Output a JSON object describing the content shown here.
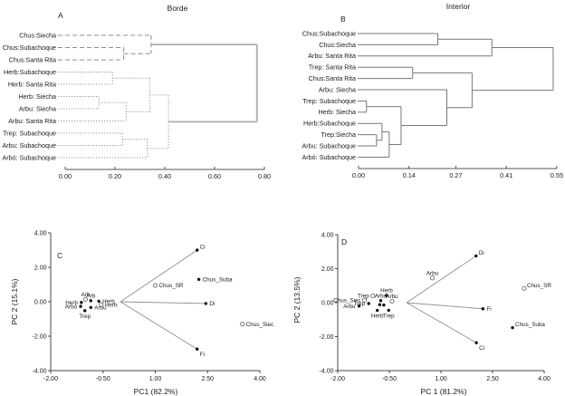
{
  "figure": {
    "background": "#ffffff",
    "text_color": "#1a1a1a",
    "dendrogram_line_gray": "#8c8c8c",
    "vector_line_gray": "#8f8f8f",
    "axis_color": "#444444"
  },
  "chart_data": [
    {
      "id": "A",
      "type": "dendrogram",
      "panel_letter": "A",
      "title": "Borde",
      "orientation": "right",
      "leaves": [
        "Chus:Siecha",
        "Chus:Subachoque",
        "Chus:Santa Rita",
        "Herb:Subachoque",
        "Herb: Santa Rita",
        "Herb: Siecha",
        "Arbu: Siecha",
        "Arbu: Santa Rita",
        "Trep: Subachoque",
        "Arbu: Subachoque",
        "Arbó: Subachoque"
      ],
      "merges": [
        {
          "a": 1,
          "b": 2,
          "h": 0.235,
          "style": "dashed"
        },
        {
          "a": 0,
          "b": 11,
          "h": 0.345,
          "style": "dashed"
        },
        {
          "a": 3,
          "b": 4,
          "h": 0.19,
          "style": "dotted"
        },
        {
          "a": 5,
          "b": 6,
          "h": 0.135,
          "style": "dotted"
        },
        {
          "a": 14,
          "b": 7,
          "h": 0.245,
          "style": "dotted"
        },
        {
          "a": 13,
          "b": 15,
          "h": 0.34,
          "style": "dotted"
        },
        {
          "a": 8,
          "b": 9,
          "h": 0.23,
          "style": "dotted"
        },
        {
          "a": 17,
          "b": 10,
          "h": 0.33,
          "style": "dotted"
        },
        {
          "a": 16,
          "b": 18,
          "h": 0.415,
          "style": "dotted"
        },
        {
          "a": 12,
          "b": 19,
          "h": 0.77,
          "style": "solid"
        }
      ],
      "distance_axis": {
        "ticks": [
          "0.00",
          "0.20",
          "0.40",
          "0.60",
          "0.80"
        ],
        "max": 0.8
      }
    },
    {
      "id": "B",
      "type": "dendrogram",
      "panel_letter": "B",
      "title": "Interior",
      "orientation": "right",
      "leaves": [
        "Chus:Subachoque",
        "Chus:Siecha",
        "Arbu: Santa Rita",
        "Trep: Santa Rita",
        "Chus:Santa Rita",
        "Arbu: Siecha",
        "Trep: Subachoque",
        "Herb: Siecha",
        "Herb:Subachoque",
        "Trep:Siecha",
        "Arbu: Subachoque",
        "Arbó: Subachoque"
      ],
      "merges": [
        {
          "a": 0,
          "b": 1,
          "h": 0.22,
          "style": "solid"
        },
        {
          "a": 12,
          "b": 2,
          "h": 0.37,
          "style": "solid"
        },
        {
          "a": 3,
          "b": 4,
          "h": 0.15,
          "style": "solid"
        },
        {
          "a": 6,
          "b": 7,
          "h": 0.022,
          "style": "solid"
        },
        {
          "a": 9,
          "b": 10,
          "h": 0.05,
          "style": "solid"
        },
        {
          "a": 8,
          "b": 16,
          "h": 0.065,
          "style": "solid"
        },
        {
          "a": 17,
          "b": 11,
          "h": 0.085,
          "style": "solid"
        },
        {
          "a": 15,
          "b": 18,
          "h": 0.118,
          "style": "solid"
        },
        {
          "a": 5,
          "b": 19,
          "h": 0.245,
          "style": "solid"
        },
        {
          "a": 14,
          "b": 20,
          "h": 0.315,
          "style": "solid"
        },
        {
          "a": 13,
          "b": 21,
          "h": 0.54,
          "style": "solid"
        }
      ],
      "distance_axis": {
        "ticks": [
          "0.00",
          "0.14",
          "0.27",
          "0.41",
          "0.55"
        ],
        "max": 0.55
      }
    },
    {
      "id": "C",
      "type": "scatter-biplot",
      "panel_letter": "C",
      "xlabel": "PC1 (82.2%)",
      "ylabel": "PC 2 (15.1%)",
      "xlim": [
        -2,
        4
      ],
      "ylim": [
        -4,
        4
      ],
      "x_ticks": [
        "-2.00",
        "-0.50",
        "1.00",
        "2.50",
        "4.00"
      ],
      "y_ticks": [
        "4.00",
        "2.00",
        "0.00",
        "-2.00",
        "-4.00"
      ],
      "vectors": [
        {
          "label": "Ci",
          "x": 2.2,
          "y": 3.0,
          "side": "above-right"
        },
        {
          "label": "Di",
          "x": 2.45,
          "y": -0.1,
          "side": "right"
        },
        {
          "label": "Fi",
          "x": 2.2,
          "y": -2.75,
          "side": "below-right"
        }
      ],
      "points": [
        {
          "label": "Chus_SR",
          "x": 1.0,
          "y": 0.95,
          "marker": "open",
          "side": "right"
        },
        {
          "label": "Chus_Suba",
          "x": 2.25,
          "y": 1.3,
          "marker": "dot",
          "side": "right"
        },
        {
          "label": "Chus_Siec",
          "x": 3.5,
          "y": -1.3,
          "marker": "open",
          "side": "right"
        },
        {
          "label": "Arb",
          "x": -1.0,
          "y": 0.14,
          "marker": "open",
          "side": "above"
        },
        {
          "label": "Herb",
          "x": -1.12,
          "y": -0.04,
          "marker": "dot",
          "side": "left"
        },
        {
          "label": "Arb",
          "x": -0.85,
          "y": 0.06,
          "marker": "dot",
          "side": "above"
        },
        {
          "label": "Herb",
          "x": -0.62,
          "y": 0.03,
          "marker": "dot",
          "side": "right"
        },
        {
          "label": "Arbó",
          "x": -1.14,
          "y": -0.27,
          "marker": "dot",
          "side": "left"
        },
        {
          "label": "Trep",
          "x": -1.02,
          "y": -0.52,
          "marker": "dot",
          "side": "below"
        },
        {
          "label": "Arbu",
          "x": -0.85,
          "y": -0.33,
          "marker": "dot",
          "side": "right"
        },
        {
          "label": "Herb",
          "x": -0.55,
          "y": -0.17,
          "marker": "open",
          "side": "right"
        }
      ]
    },
    {
      "id": "D",
      "type": "scatter-biplot",
      "panel_letter": "D",
      "xlabel": "PC 1 (81.2%)",
      "ylabel": "PC 2 (13.5%)",
      "xlim": [
        -2,
        4
      ],
      "ylim": [
        -4,
        4
      ],
      "x_ticks": [
        "-2.00",
        "-0.50",
        "1.00",
        "2.50",
        "4.00"
      ],
      "y_ticks": [
        "4.00",
        "2.00",
        "0.00",
        "-2.00",
        "-4.00"
      ],
      "vectors": [
        {
          "label": "Di",
          "x": 2.02,
          "y": 2.75,
          "side": "above-right"
        },
        {
          "label": "Fi",
          "x": 2.22,
          "y": -0.36,
          "side": "right"
        },
        {
          "label": "Ci",
          "x": 2.03,
          "y": -2.36,
          "side": "below-right"
        }
      ],
      "points": [
        {
          "label": "Arbu",
          "x": 0.75,
          "y": 1.45,
          "marker": "open",
          "side": "above"
        },
        {
          "label": "Chus_SR",
          "x": 3.42,
          "y": 0.84,
          "marker": "open",
          "side": "above-right"
        },
        {
          "label": "Chus_Suba",
          "x": 3.08,
          "y": -1.47,
          "marker": "dot",
          "side": "above-right"
        },
        {
          "label": "Chus_Siec",
          "x": -1.22,
          "y": 0.15,
          "marker": "open",
          "side": "left"
        },
        {
          "label": "Trep",
          "x": -0.98,
          "y": 0.4,
          "marker": "open",
          "side": "left"
        },
        {
          "label": "Herb",
          "x": -0.58,
          "y": 0.42,
          "marker": "dot",
          "side": "above"
        },
        {
          "label": "Trep",
          "x": -1.1,
          "y": -0.05,
          "marker": "dot",
          "side": "left"
        },
        {
          "label": "Arbó",
          "x": -0.75,
          "y": 0.12,
          "marker": "dot",
          "side": "above"
        },
        {
          "label": "Arbu",
          "x": -0.42,
          "y": 0.08,
          "marker": "open",
          "side": "above"
        },
        {
          "label": "Arbu",
          "x": -1.38,
          "y": -0.2,
          "marker": "dot",
          "side": "left"
        },
        {
          "label": "Herb",
          "x": -0.85,
          "y": -0.45,
          "marker": "dot",
          "side": "below"
        },
        {
          "label": "Trep",
          "x": -0.52,
          "y": -0.45,
          "marker": "dot",
          "side": "below"
        },
        {
          "label": "",
          "x": -0.78,
          "y": -0.12,
          "marker": "dot",
          "side": "right"
        },
        {
          "label": "",
          "x": -0.66,
          "y": -0.14,
          "marker": "dot",
          "side": "right"
        }
      ]
    }
  ]
}
